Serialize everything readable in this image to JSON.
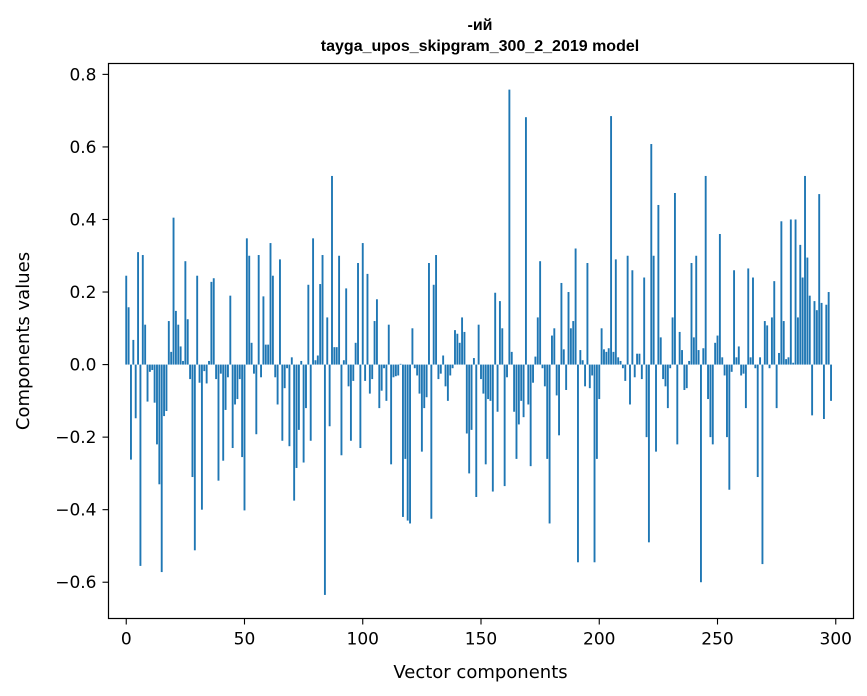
{
  "chart_data": {
    "type": "bar",
    "title_lines": [
      "-ий",
      "tayga_upos_skipgram_300_2_2019 model"
    ],
    "xlabel": "Vector components",
    "ylabel": "Components values",
    "xlim": [
      -7.5,
      307.5
    ],
    "ylim": [
      -0.7,
      0.83
    ],
    "xticks": [
      0,
      50,
      100,
      150,
      200,
      250,
      300
    ],
    "xtick_labels": [
      "0",
      "50",
      "100",
      "150",
      "200",
      "250",
      "300"
    ],
    "yticks": [
      -0.6,
      -0.4,
      -0.2,
      0.0,
      0.2,
      0.4,
      0.6,
      0.8
    ],
    "ytick_labels": [
      "−0.6",
      "−0.4",
      "−0.2",
      "0.0",
      "0.2",
      "0.4",
      "0.6",
      "0.8"
    ],
    "bar_color": "#1f77b4",
    "grid": false,
    "values": [
      0.245,
      0.158,
      -0.262,
      0.068,
      -0.148,
      0.31,
      -0.555,
      0.302,
      0.11,
      -0.102,
      -0.02,
      -0.015,
      -0.105,
      -0.22,
      -0.33,
      -0.572,
      -0.142,
      -0.128,
      0.12,
      0.035,
      0.405,
      0.148,
      0.11,
      0.05,
      0.01,
      0.285,
      0.125,
      -0.04,
      -0.31,
      -0.512,
      0.245,
      -0.05,
      -0.4,
      -0.018,
      -0.052,
      0.01,
      0.228,
      0.238,
      -0.04,
      -0.32,
      -0.025,
      -0.265,
      -0.125,
      -0.035,
      0.19,
      -0.23,
      -0.11,
      -0.095,
      -0.04,
      -0.255,
      -0.402,
      0.348,
      0.3,
      0.06,
      -0.025,
      -0.192,
      0.302,
      -0.035,
      0.188,
      0.055,
      0.055,
      0.335,
      0.245,
      -0.035,
      -0.11,
      0.29,
      -0.21,
      -0.065,
      -0.01,
      -0.225,
      0.02,
      -0.375,
      -0.285,
      -0.18,
      0.01,
      -0.27,
      -0.12,
      0.22,
      -0.21,
      0.348,
      0.012,
      0.025,
      0.222,
      0.302,
      -0.635,
      0.13,
      -0.17,
      0.52,
      0.048,
      0.048,
      0.3,
      -0.25,
      0.012,
      0.21,
      -0.06,
      -0.21,
      -0.045,
      0.06,
      0.28,
      -0.23,
      0.335,
      -0.045,
      0.25,
      -0.08,
      -0.04,
      0.12,
      0.18,
      -0.12,
      -0.072,
      -0.01,
      -0.1,
      0.11,
      -0.275,
      -0.035,
      -0.032,
      -0.03,
      0.002,
      -0.42,
      -0.26,
      -0.43,
      -0.438,
      0.1,
      -0.01,
      -0.03,
      -0.08,
      -0.24,
      -0.12,
      -0.09,
      0.28,
      -0.425,
      0.22,
      0.302,
      -0.04,
      -0.025,
      0.025,
      -0.06,
      -0.1,
      -0.03,
      -0.01,
      0.095,
      0.085,
      0.06,
      0.13,
      0.09,
      -0.19,
      -0.3,
      -0.18,
      0.018,
      -0.365,
      0.11,
      -0.04,
      -0.08,
      -0.275,
      -0.095,
      -0.1,
      -0.35,
      0.198,
      -0.13,
      0.175,
      0.1,
      -0.335,
      -0.035,
      0.758,
      0.035,
      -0.13,
      -0.26,
      -0.165,
      -0.1,
      -0.145,
      0.682,
      -0.11,
      -0.28,
      -0.05,
      0.022,
      0.13,
      0.285,
      -0.01,
      -0.06,
      -0.26,
      -0.438,
      0.08,
      0.1,
      -0.085,
      -0.195,
      0.225,
      0.042,
      -0.07,
      0.2,
      0.1,
      0.12,
      0.32,
      -0.545,
      0.04,
      0.012,
      -0.06,
      0.28,
      -0.065,
      -0.03,
      -0.545,
      -0.26,
      -0.095,
      0.1,
      0.042,
      0.035,
      0.045,
      0.685,
      0.035,
      0.29,
      0.02,
      0.01,
      -0.01,
      -0.045,
      0.3,
      -0.11,
      0.26,
      -0.035,
      0.03,
      0.03,
      -0.04,
      0.24,
      -0.2,
      -0.49,
      0.608,
      0.3,
      -0.24,
      0.44,
      0.075,
      -0.04,
      -0.06,
      -0.12,
      -0.01,
      0.13,
      0.473,
      -0.22,
      0.09,
      0.04,
      -0.07,
      -0.065,
      0.01,
      0.28,
      0.075,
      0.3,
      0.04,
      -0.6,
      0.045,
      0.52,
      -0.095,
      -0.2,
      -0.22,
      0.06,
      0.08,
      0.36,
      0.02,
      -0.03,
      -0.2,
      -0.345,
      -0.02,
      0.26,
      0.02,
      0.05,
      -0.03,
      -0.025,
      -0.12,
      0.265,
      0.02,
      0.24,
      -0.01,
      -0.31,
      0.02,
      -0.55,
      0.12,
      0.108,
      -0.01,
      0.13,
      0.23,
      -0.12,
      0.032,
      0.395,
      0.12,
      0.015,
      0.02,
      0.4,
      0.005,
      0.4,
      0.13,
      0.33,
      0.24,
      0.52,
      0.295,
      0.19,
      -0.14,
      0.175,
      0.15,
      0.47,
      0.17,
      -0.15,
      0.165,
      0.2,
      -0.1
    ]
  }
}
